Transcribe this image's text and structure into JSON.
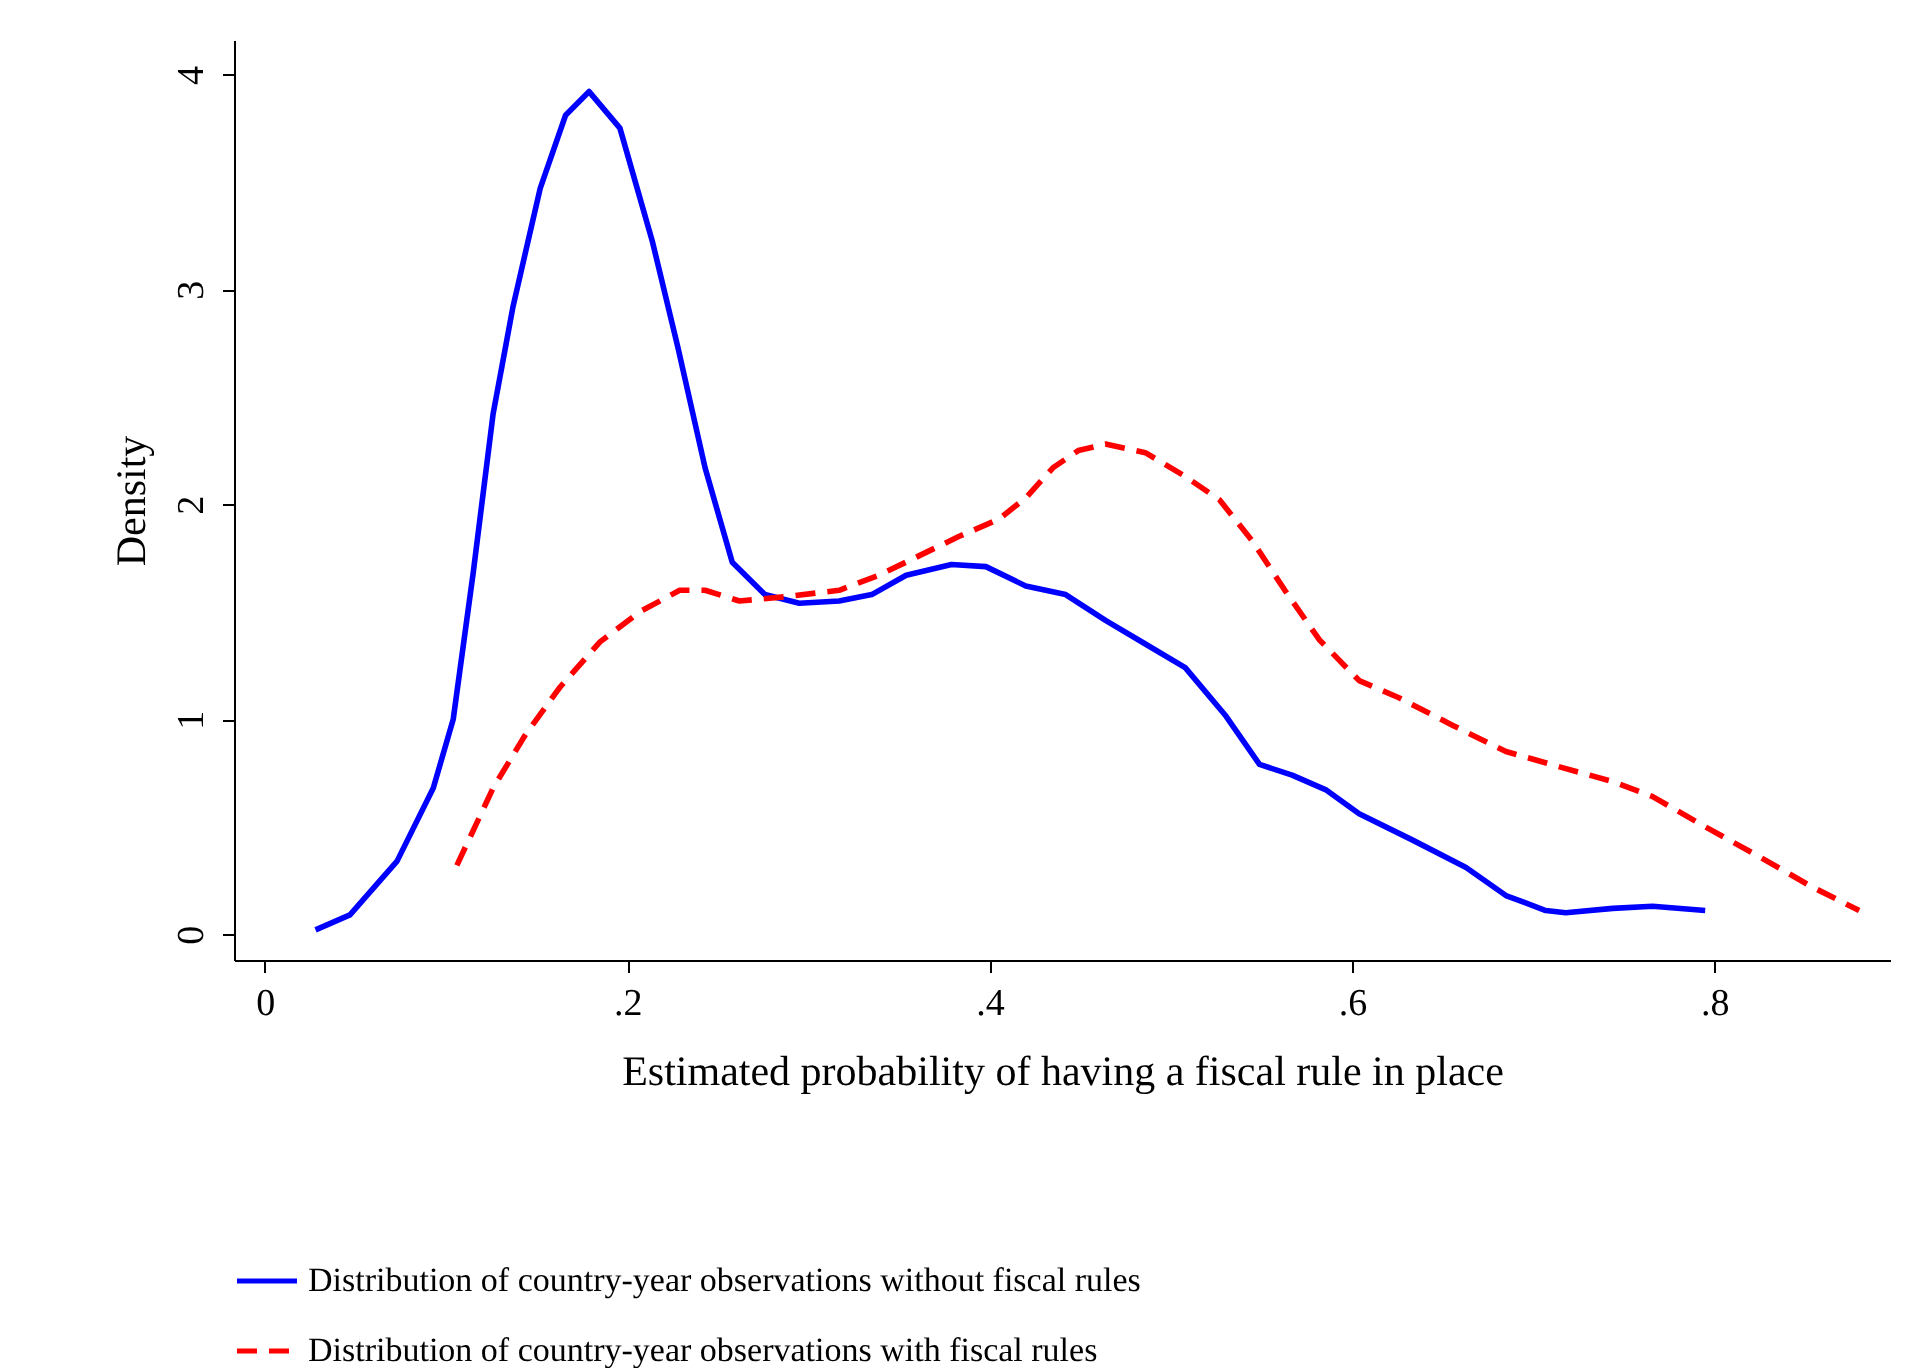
{
  "chart_data": {
    "type": "line",
    "xlabel": "Estimated probability of having a fiscal rule in place",
    "ylabel": "Density",
    "xlim": [
      -0.017,
      0.897
    ],
    "ylim": [
      -0.12,
      4.16
    ],
    "xticks": [
      {
        "value": 0,
        "label": "0"
      },
      {
        "value": 0.2,
        "label": ".2"
      },
      {
        "value": 0.4,
        "label": ".4"
      },
      {
        "value": 0.6,
        "label": ".6"
      },
      {
        "value": 0.8,
        "label": ".8"
      }
    ],
    "yticks": [
      0,
      1,
      2,
      3,
      4
    ],
    "grid": false,
    "legend": "bottom",
    "marker": "none",
    "series": [
      {
        "name": "Distribution of country-year observations without fiscal rules",
        "color": "#0000ff",
        "line_style": "solid",
        "x": [
          0.028,
          0.047,
          0.073,
          0.093,
          0.104,
          0.115,
          0.126,
          0.137,
          0.152,
          0.166,
          0.179,
          0.196,
          0.214,
          0.228,
          0.243,
          0.258,
          0.276,
          0.295,
          0.317,
          0.335,
          0.354,
          0.379,
          0.398,
          0.42,
          0.442,
          0.464,
          0.486,
          0.508,
          0.53,
          0.549,
          0.567,
          0.586,
          0.604,
          0.633,
          0.663,
          0.685,
          0.707,
          0.718,
          0.744,
          0.766,
          0.795
        ],
        "values": [
          0.02,
          0.09,
          0.34,
          0.68,
          1.0,
          1.68,
          2.42,
          2.92,
          3.47,
          3.81,
          3.92,
          3.75,
          3.22,
          2.73,
          2.17,
          1.73,
          1.58,
          1.54,
          1.55,
          1.58,
          1.67,
          1.72,
          1.71,
          1.62,
          1.58,
          1.46,
          1.35,
          1.24,
          1.02,
          0.79,
          0.74,
          0.67,
          0.56,
          0.44,
          0.31,
          0.18,
          0.11,
          0.1,
          0.12,
          0.13,
          0.11
        ]
      },
      {
        "name": "Distribution of country-year observations with fiscal rules",
        "color": "#ff0000",
        "line_style": "dashed",
        "x": [
          0.106,
          0.126,
          0.144,
          0.163,
          0.185,
          0.207,
          0.229,
          0.243,
          0.262,
          0.287,
          0.317,
          0.339,
          0.361,
          0.383,
          0.405,
          0.42,
          0.435,
          0.449,
          0.464,
          0.486,
          0.508,
          0.527,
          0.545,
          0.563,
          0.582,
          0.604,
          0.626,
          0.656,
          0.685,
          0.714,
          0.744,
          0.766,
          0.795,
          0.825,
          0.854,
          0.88
        ],
        "values": [
          0.32,
          0.68,
          0.93,
          1.15,
          1.36,
          1.5,
          1.6,
          1.6,
          1.55,
          1.57,
          1.6,
          1.67,
          1.76,
          1.85,
          1.93,
          2.03,
          2.17,
          2.25,
          2.28,
          2.24,
          2.13,
          2.02,
          1.83,
          1.6,
          1.37,
          1.18,
          1.1,
          0.97,
          0.85,
          0.78,
          0.71,
          0.64,
          0.5,
          0.36,
          0.22,
          0.11
        ]
      }
    ]
  }
}
